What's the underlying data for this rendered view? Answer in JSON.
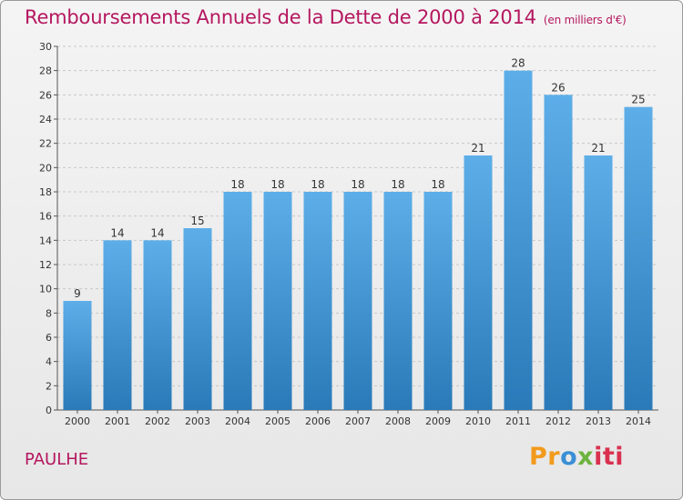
{
  "title": "Remboursements Annuels de la Dette de 2000 à 2014",
  "unit": "(en milliers d'€)",
  "commune": "PAULHE",
  "logo": {
    "part1": "Pr",
    "part2": "o",
    "part3": "x",
    "part4": "iti"
  },
  "colors": {
    "title": "#b5175f",
    "bar_top": "#5daee8",
    "bar_bottom": "#2a7ab9",
    "grid": "#c8c8c8"
  },
  "chart_data": {
    "type": "bar",
    "categories": [
      "2000",
      "2001",
      "2002",
      "2003",
      "2004",
      "2005",
      "2006",
      "2007",
      "2008",
      "2009",
      "2010",
      "2011",
      "2012",
      "2013",
      "2014"
    ],
    "values": [
      9,
      14,
      14,
      15,
      18,
      18,
      18,
      18,
      18,
      18,
      21,
      28,
      26,
      21,
      25
    ],
    "ylim": [
      0,
      30
    ],
    "yticks": [
      0,
      2,
      4,
      6,
      8,
      10,
      12,
      14,
      16,
      18,
      20,
      22,
      24,
      26,
      28,
      30
    ],
    "grid": true,
    "xlabel": "",
    "ylabel": ""
  }
}
